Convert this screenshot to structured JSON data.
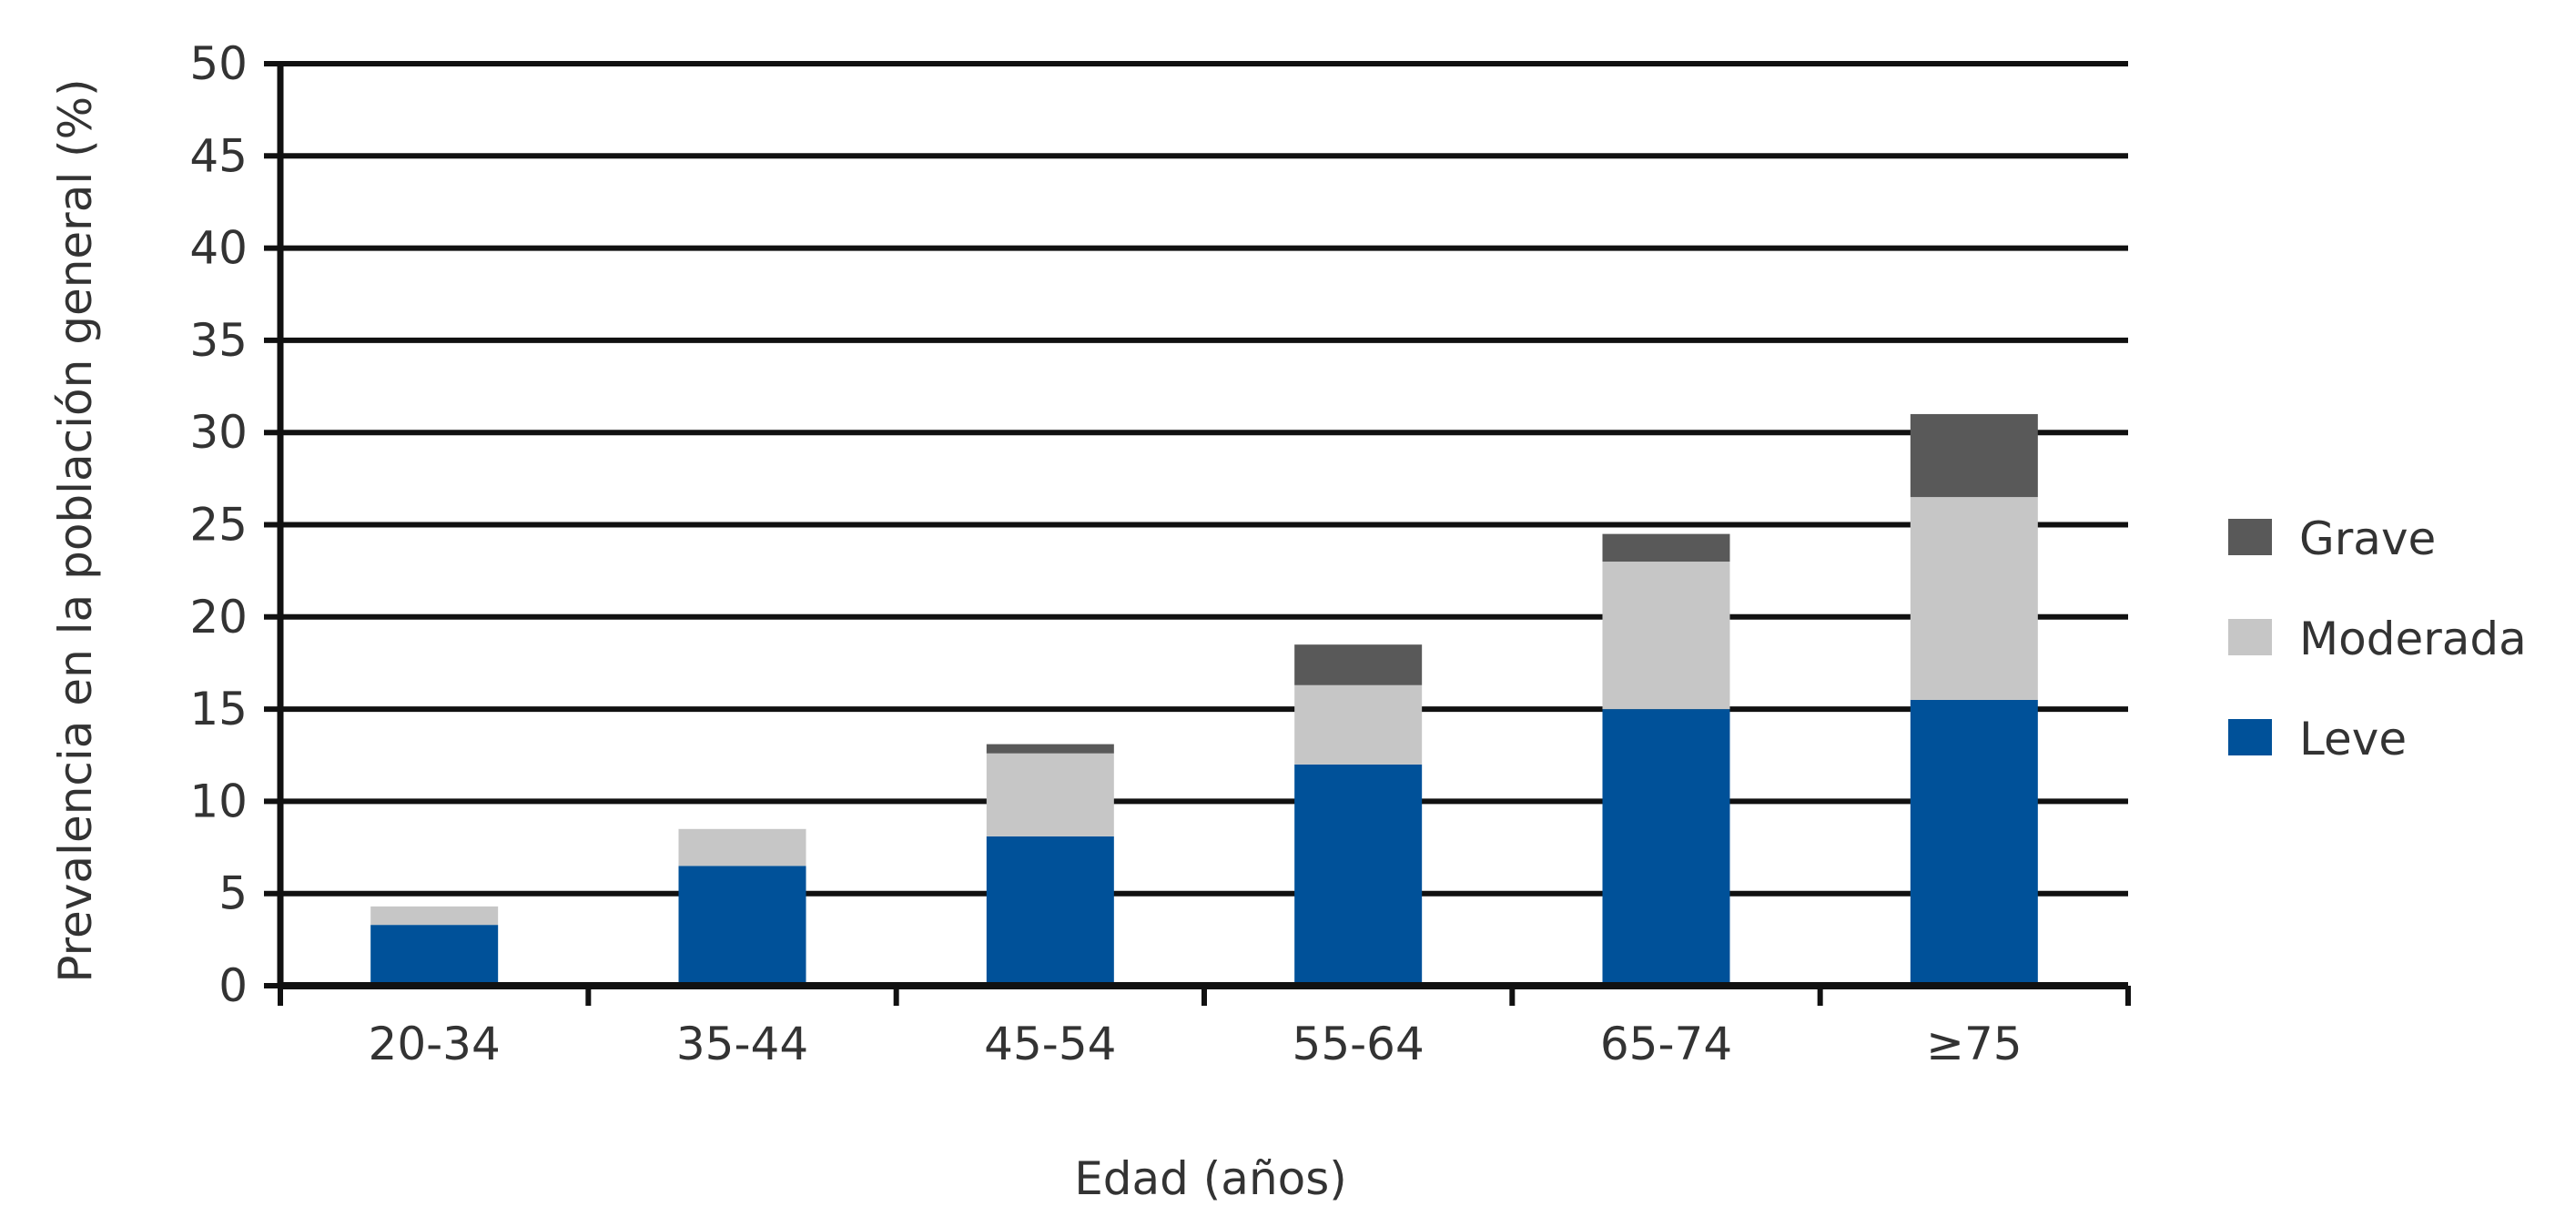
{
  "chart_data": {
    "type": "bar",
    "stacked": true,
    "categories": [
      "20-34",
      "35-44",
      "45-54",
      "55-64",
      "65-74",
      "≥75"
    ],
    "series": [
      {
        "name": "Leve",
        "color": "#005199",
        "values": [
          3.3,
          6.5,
          8.1,
          12.0,
          15.0,
          15.5
        ]
      },
      {
        "name": "Moderada",
        "color": "#c6c6c6",
        "values": [
          1.0,
          2.0,
          4.5,
          4.3,
          8.0,
          11.0
        ]
      },
      {
        "name": "Grave",
        "color": "#595959",
        "values": [
          0,
          0,
          0.5,
          2.2,
          1.5,
          4.5
        ]
      }
    ],
    "xlabel": "Edad (años)",
    "ylabel": "Prevalencia en la población general (%)",
    "ylim": [
      0,
      50
    ],
    "yticks": [
      "0",
      "5",
      "10",
      "15",
      "20",
      "25",
      "30",
      "35",
      "40",
      "45",
      "50"
    ],
    "grid": true,
    "legend_position": "right",
    "legend_order": [
      "Grave",
      "Moderada",
      "Leve"
    ]
  }
}
